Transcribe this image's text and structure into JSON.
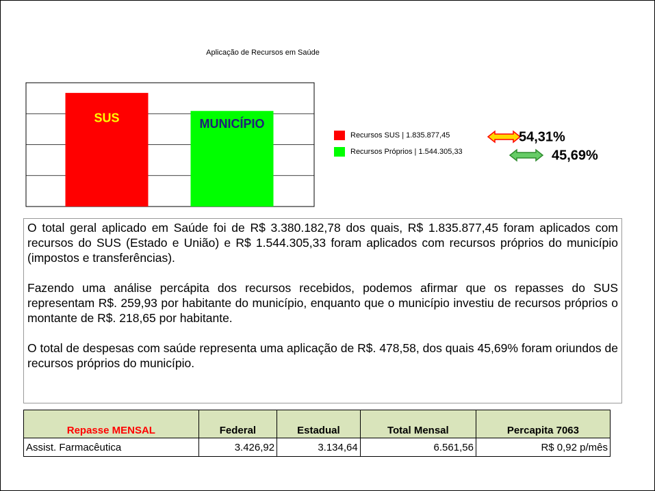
{
  "chart_data": {
    "type": "bar",
    "title": "Aplicação de Recursos em Saúde",
    "categories": [
      "SUS",
      "MUNICÍPIO"
    ],
    "values": [
      1835877.45,
      1544305.33
    ],
    "colors": [
      "#ff0000",
      "#00ff00"
    ],
    "label_colors": [
      "#ffff00",
      "#1f1f7a"
    ],
    "ylim": [
      0,
      2000000
    ],
    "yticks": [
      0,
      500000,
      1000000,
      1500000,
      2000000
    ],
    "grid": true,
    "legend": [
      "Recursos SUS | 1.835.877,45",
      "Recursos Próprios | 1.544.305,33"
    ],
    "percent_labels": [
      "54,31%",
      "45,69%"
    ]
  },
  "paragraphs": [
    "O total geral aplicado em Saúde foi de R$ 3.380.182,78 dos quais, R$ 1.835.877,45 foram aplicados com recursos do SUS (Estado e União) e R$ 1.544.305,33 foram aplicados com recursos próprios do município (impostos e transferências).",
    "Fazendo uma análise percápita dos recursos recebidos, podemos afirmar que os repasses do SUS representam R$. 259,93 por habitante do município, enquanto que o município investiu de recursos próprios o montante de R$. 218,65 por habitante.",
    "O total de despesas com saúde representa uma aplicação de R$. 478,58, dos quais 45,69% foram oriundos de recursos próprios do município."
  ],
  "table": {
    "header": [
      "Repasse MENSAL",
      "Federal",
      "Estadual",
      "Total Mensal",
      "Percapita 7063"
    ],
    "rows": [
      [
        "Assist. Farmacêutica",
        "3.426,92",
        "3.134,64",
        "6.561,56",
        "R$ 0,92 p/mês"
      ]
    ]
  }
}
